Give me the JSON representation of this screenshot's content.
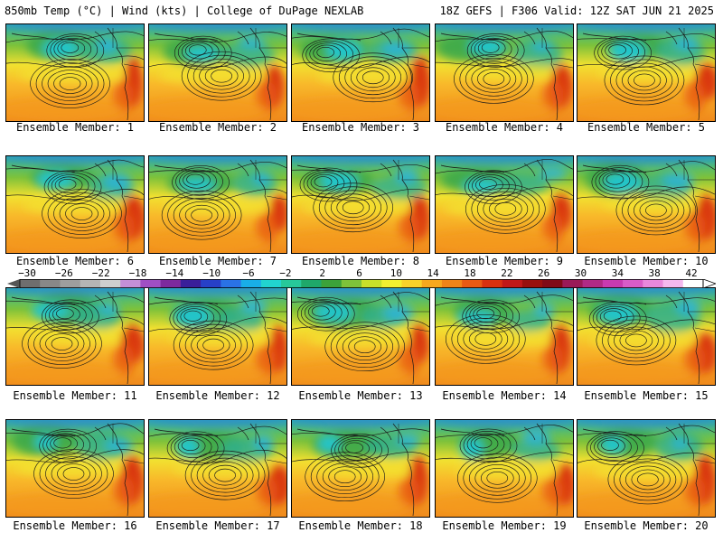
{
  "header": {
    "left": "850mb Temp (°C) | Wind (kts) | College of DuPage NEXLAB",
    "right": "18Z GEFS | F306 Valid: 12Z SAT JUN 21 2025"
  },
  "colorbar": {
    "labels": [
      "−30",
      "−26",
      "−22",
      "−18",
      "−14",
      "−10",
      "−6",
      "−2",
      "2",
      "6",
      "10",
      "14",
      "18",
      "22",
      "26",
      "30",
      "34",
      "38",
      "42"
    ],
    "colors": [
      "#6e6e6e",
      "#888888",
      "#9e9e9e",
      "#b5b5b5",
      "#cfcfcf",
      "#c48fd8",
      "#a04fc4",
      "#7d2a9e",
      "#3a1f9a",
      "#2740c8",
      "#2a72e6",
      "#19aee8",
      "#21d4d0",
      "#27c89a",
      "#1fa86a",
      "#3ca23a",
      "#7ec23a",
      "#c8e02a",
      "#f2f030",
      "#f8d22a",
      "#f6a81e",
      "#f08418",
      "#e85a14",
      "#d83010",
      "#c01818",
      "#98100e",
      "#800a18",
      "#9a1a58",
      "#b02a86",
      "#c83ab0",
      "#d85cc8",
      "#e888dc",
      "#f4b8ee",
      "#ffffff"
    ]
  },
  "panels": [
    {
      "label": "Ensemble Member: 1"
    },
    {
      "label": "Ensemble Member: 2"
    },
    {
      "label": "Ensemble Member: 3"
    },
    {
      "label": "Ensemble Member: 4"
    },
    {
      "label": "Ensemble Member: 5"
    },
    {
      "label": "Ensemble Member: 6"
    },
    {
      "label": "Ensemble Member: 7"
    },
    {
      "label": "Ensemble Member: 8"
    },
    {
      "label": "Ensemble Member: 9"
    },
    {
      "label": "Ensemble Member: 10"
    },
    {
      "label": "Ensemble Member: 11"
    },
    {
      "label": "Ensemble Member: 12"
    },
    {
      "label": "Ensemble Member: 13"
    },
    {
      "label": "Ensemble Member: 14"
    },
    {
      "label": "Ensemble Member: 15"
    },
    {
      "label": "Ensemble Member: 16"
    },
    {
      "label": "Ensemble Member: 17"
    },
    {
      "label": "Ensemble Member: 18"
    },
    {
      "label": "Ensemble Member: 19"
    },
    {
      "label": "Ensemble Member: 20"
    }
  ]
}
